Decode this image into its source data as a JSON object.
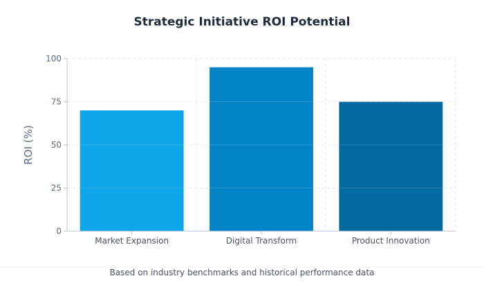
{
  "chart_data": {
    "type": "bar",
    "title": "Strategic Initiative ROI Potential",
    "xlabel": "",
    "ylabel": "ROI (%)",
    "categories": [
      "Market Expansion",
      "Digital Transform",
      "Product Innovation"
    ],
    "values": [
      70,
      95,
      75
    ],
    "ylim": [
      0,
      100
    ],
    "yticks": [
      0,
      25,
      50,
      75,
      100
    ],
    "colors": [
      "#0ea5e9",
      "#0284c7",
      "#0369a1"
    ],
    "grid": true,
    "footer": "Based on industry benchmarks and historical performance data"
  }
}
